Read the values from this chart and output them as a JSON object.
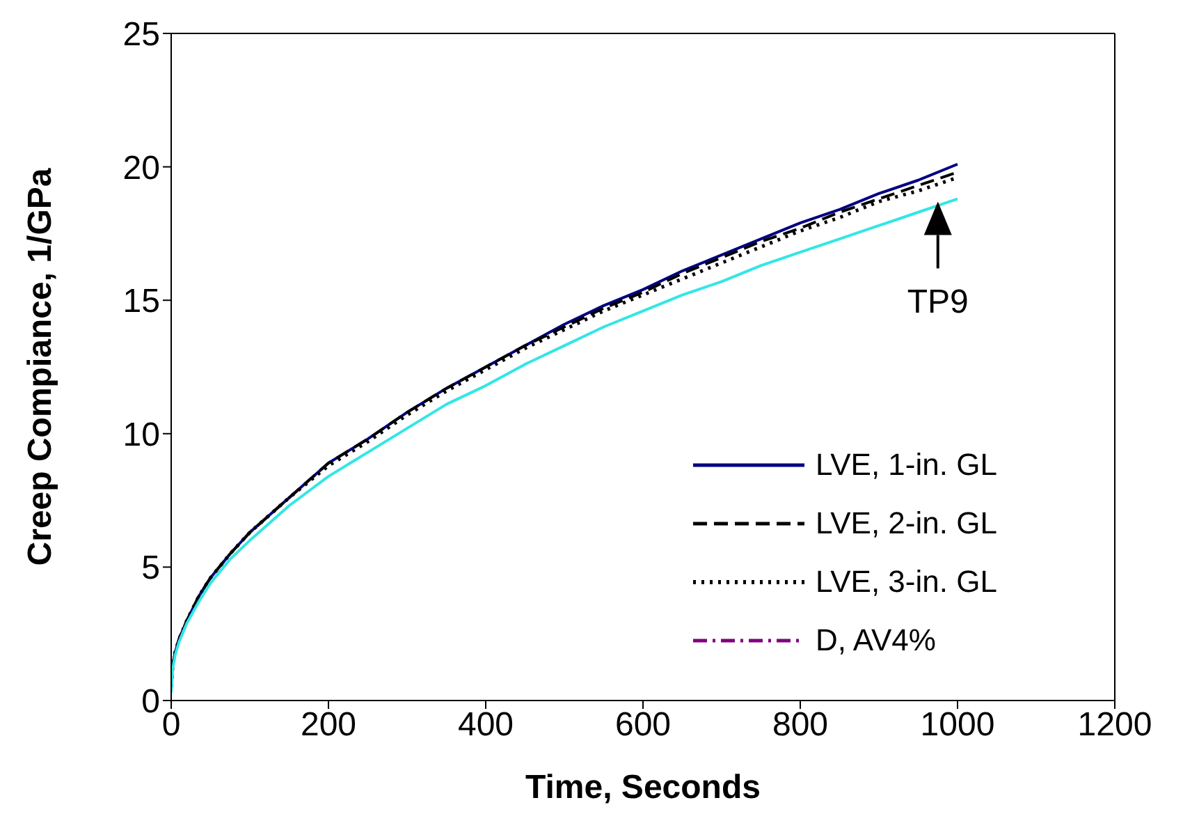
{
  "chart_data": {
    "type": "line",
    "xlabel": "Time, Seconds",
    "ylabel": "Creep Compiance, 1/GPa",
    "x": [
      0,
      2,
      5,
      10,
      20,
      35,
      50,
      75,
      100,
      150,
      200,
      250,
      300,
      350,
      400,
      450,
      500,
      550,
      600,
      650,
      700,
      750,
      800,
      850,
      900,
      950,
      1000
    ],
    "series": [
      {
        "name": "LVE, 1-in. GL",
        "color": "#000080",
        "line_style": "solid",
        "values": [
          null,
          1.3,
          1.8,
          2.3,
          3.0,
          3.9,
          4.6,
          5.5,
          6.3,
          7.6,
          8.9,
          9.8,
          10.8,
          11.7,
          12.5,
          13.3,
          14.1,
          14.8,
          15.4,
          16.1,
          16.7,
          17.3,
          17.9,
          18.4,
          19.0,
          19.5,
          20.1
        ]
      },
      {
        "name": "LVE, 2-in. GL",
        "color": "#000000",
        "line_style": "dashed",
        "values": [
          0.5,
          1.3,
          1.8,
          2.3,
          3.0,
          3.9,
          4.6,
          5.5,
          6.3,
          7.6,
          8.9,
          9.8,
          10.8,
          11.7,
          12.5,
          13.3,
          14.0,
          14.7,
          15.3,
          16.0,
          16.6,
          17.2,
          17.7,
          18.3,
          18.8,
          19.3,
          19.8
        ]
      },
      {
        "name": "LVE, 3-in. GL",
        "color": "#000000",
        "line_style": "dotted",
        "values": [
          0.5,
          1.3,
          1.8,
          2.3,
          3.0,
          3.9,
          4.6,
          5.5,
          6.3,
          7.6,
          8.8,
          9.7,
          10.7,
          11.6,
          12.4,
          13.2,
          13.9,
          14.6,
          15.2,
          15.8,
          16.4,
          17.0,
          17.6,
          18.1,
          18.7,
          19.1,
          19.6
        ]
      },
      {
        "name": "D, AV4%",
        "color": "#800080",
        "line_style": "dashdot",
        "values": [
          null,
          null,
          null,
          null,
          null,
          null,
          null,
          null,
          null,
          null,
          null,
          null,
          null,
          null,
          null,
          null,
          null,
          null,
          null,
          null,
          null,
          null,
          null,
          null,
          null,
          null,
          null
        ]
      },
      {
        "color": "#33e6e6",
        "line_style": "solid",
        "values": [
          0.3,
          1.2,
          1.7,
          2.2,
          2.9,
          3.7,
          4.4,
          5.3,
          6.0,
          7.3,
          8.4,
          9.3,
          10.2,
          11.1,
          11.8,
          12.6,
          13.3,
          14.0,
          14.6,
          15.2,
          15.7,
          16.3,
          16.8,
          17.3,
          17.8,
          18.3,
          18.8
        ]
      }
    ],
    "xlim": [
      0,
      1200
    ],
    "xticks": [
      0,
      200,
      400,
      600,
      800,
      1000,
      1200
    ],
    "ylim": [
      0,
      25
    ],
    "yticks": [
      0,
      5,
      10,
      15,
      20,
      25
    ],
    "grid": false,
    "legend": "right",
    "marker": "none",
    "annotations": [
      {
        "text": "TP9",
        "x": 975,
        "y": 18.7
      }
    ]
  }
}
